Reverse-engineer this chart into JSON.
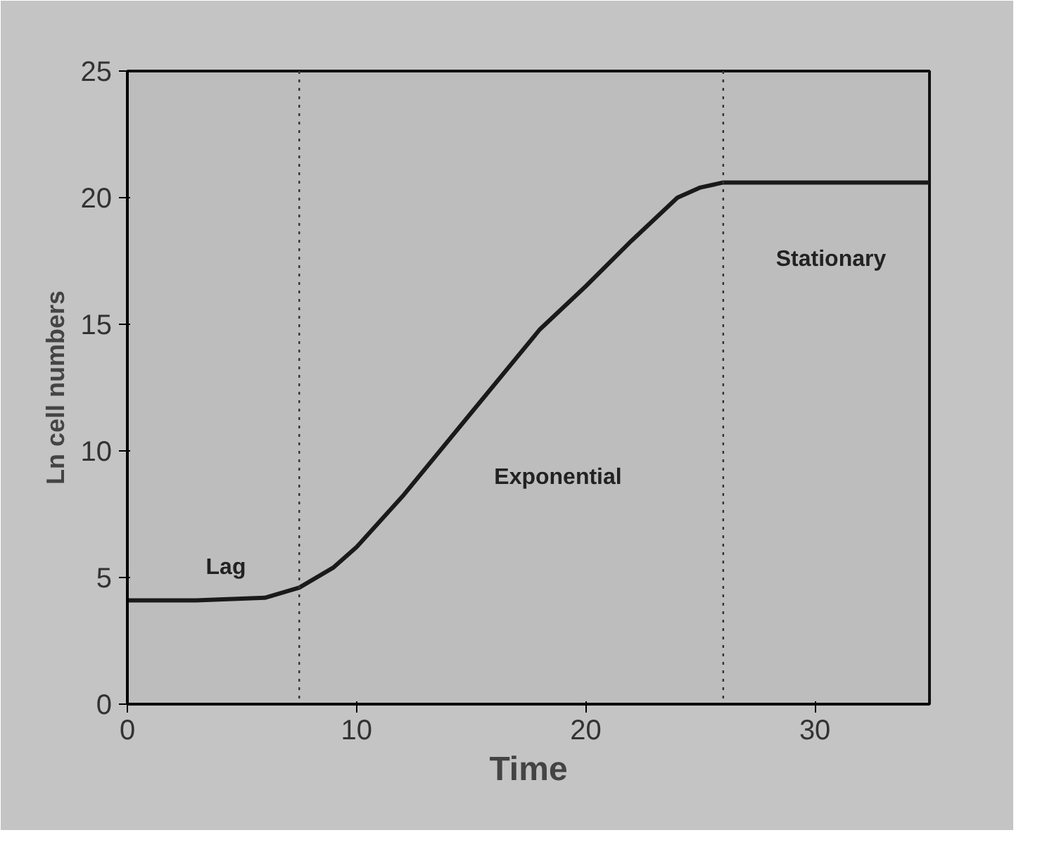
{
  "chart_data": {
    "type": "line",
    "xlabel": "Time",
    "ylabel": "Ln cell numbers",
    "xlim": [
      0,
      35
    ],
    "xticks": [
      0,
      10,
      20,
      30
    ],
    "ylim": [
      0,
      25
    ],
    "yticks": [
      0,
      5,
      10,
      15,
      20,
      25
    ],
    "grid": false,
    "marker": "none",
    "line_style": "solid",
    "x": [
      0,
      3,
      6,
      7.5,
      9,
      10,
      12,
      15,
      18,
      20,
      22,
      24,
      25,
      26,
      35
    ],
    "series": [
      {
        "color": "#1a1a1a",
        "values": [
          4.1,
          4.1,
          4.2,
          4.6,
          5.4,
          6.2,
          8.2,
          11.5,
          14.8,
          16.5,
          18.3,
          20.0,
          20.4,
          20.6,
          20.6
        ]
      }
    ],
    "ref_lines": [
      {
        "axis": "x",
        "value": 7.5,
        "line_style": "dotted",
        "color": "#333333"
      },
      {
        "axis": "x",
        "value": 26,
        "line_style": "dotted",
        "color": "#333333"
      }
    ],
    "annotations": [
      "Lag",
      "Exponential",
      "Stationary"
    ]
  }
}
